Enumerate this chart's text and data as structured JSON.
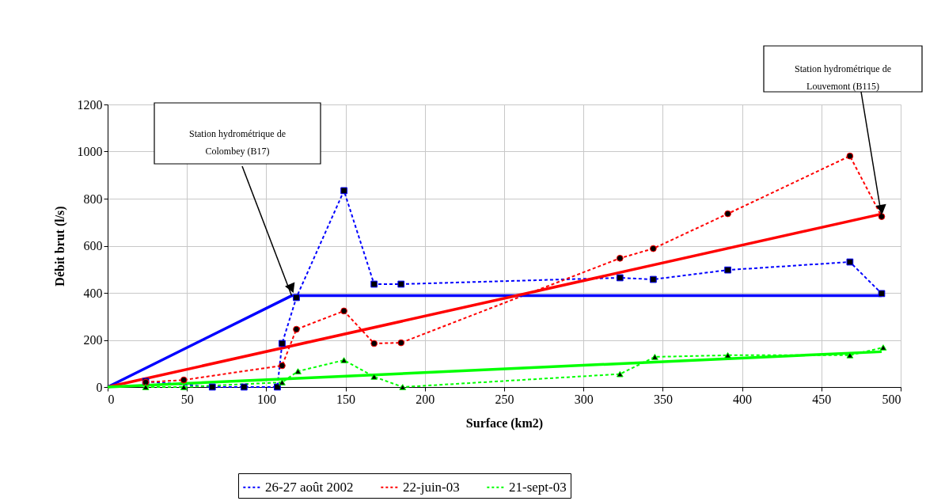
{
  "chart_data": {
    "type": "line",
    "xlabel": "Surface (km2)",
    "ylabel": "Débit brut (l/s)",
    "xlim": [
      0,
      500
    ],
    "ylim": [
      0,
      1200
    ],
    "xticks": [
      0,
      50,
      100,
      150,
      200,
      250,
      300,
      350,
      400,
      450,
      500
    ],
    "yticks": [
      0,
      200,
      400,
      600,
      800,
      1000,
      1200
    ],
    "grid": true,
    "legend": "bottom",
    "series": [
      {
        "name": "26-27 août 2002",
        "color": "#0000ff",
        "marker": "square",
        "line_style": "dashed",
        "x": [
          24,
          66,
          86,
          107,
          110,
          119,
          149,
          168,
          185,
          323,
          344,
          391,
          468,
          488
        ],
        "values": [
          24,
          0,
          0,
          0,
          185,
          380,
          834,
          437,
          437,
          464,
          457,
          497,
          531,
          397
        ]
      },
      {
        "name": "22-juin-03",
        "color": "#ff0000",
        "marker": "circle",
        "line_style": "dashed",
        "x": [
          24,
          48,
          110,
          119,
          149,
          168,
          185,
          323,
          344,
          391,
          468,
          488
        ],
        "values": [
          20,
          30,
          91,
          245,
          323,
          185,
          188,
          547,
          588,
          736,
          981,
          724
        ]
      },
      {
        "name": "21-sept-03",
        "color": "#00ff00",
        "marker": "triangle",
        "line_style": "dashed",
        "x": [
          24,
          48,
          110,
          120,
          149,
          168,
          186,
          323,
          345,
          391,
          468,
          489
        ],
        "values": [
          0,
          0,
          20,
          67,
          114,
          44,
          0,
          55,
          128,
          135,
          135,
          168
        ]
      },
      {
        "color": "#0000ff",
        "marker": "none",
        "line_style": "solid",
        "x": [
          0,
          116,
          488
        ],
        "values": [
          0,
          388,
          388
        ]
      },
      {
        "color": "#ff0000",
        "marker": "none",
        "line_style": "solid",
        "x": [
          0,
          488
        ],
        "values": [
          0,
          735
        ]
      },
      {
        "color": "#00ff00",
        "marker": "none",
        "line_style": "solid",
        "x": [
          0,
          488
        ],
        "values": [
          0,
          150
        ]
      }
    ],
    "annotations": [
      {
        "text": "Station hydrométrique de\nColombey (B17)",
        "x": 116,
        "y": 388
      },
      {
        "text": "Station hydrométrique de\nLouvemont (B115)",
        "x": 488,
        "y": 724
      }
    ]
  }
}
